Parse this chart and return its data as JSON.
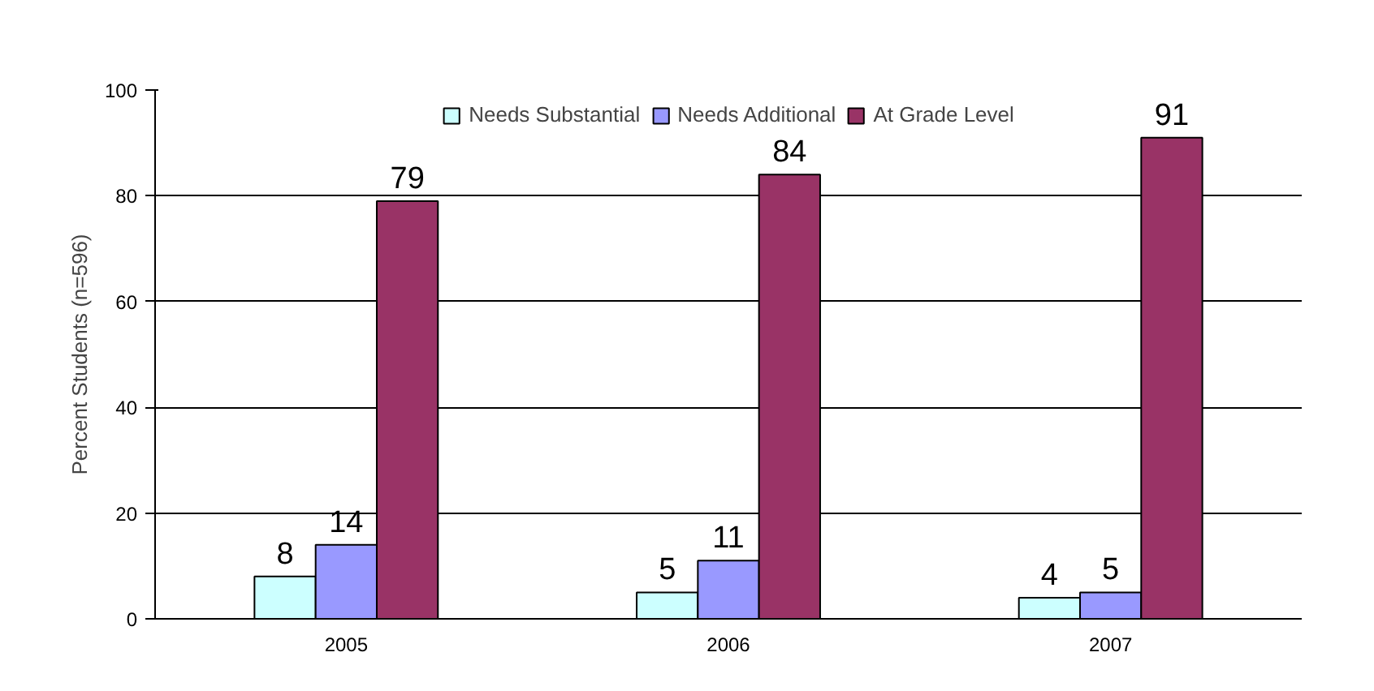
{
  "chart_data": {
    "type": "bar",
    "ylabel": "Percent Students (n=596)",
    "categories": [
      "2005",
      "2006",
      "2007"
    ],
    "series": [
      {
        "name": "Needs Substantial",
        "color": "#ccffff",
        "values": [
          8,
          5,
          4
        ]
      },
      {
        "name": "Needs Additional",
        "color": "#9999ff",
        "values": [
          14,
          11,
          5
        ]
      },
      {
        "name": "At Grade Level",
        "color": "#993366",
        "values": [
          79,
          84,
          91
        ]
      }
    ],
    "ylim": [
      0,
      100
    ],
    "yticks": [
      0,
      20,
      40,
      60,
      80,
      100
    ],
    "grid": "y",
    "legend": "top",
    "data_labels": true
  }
}
